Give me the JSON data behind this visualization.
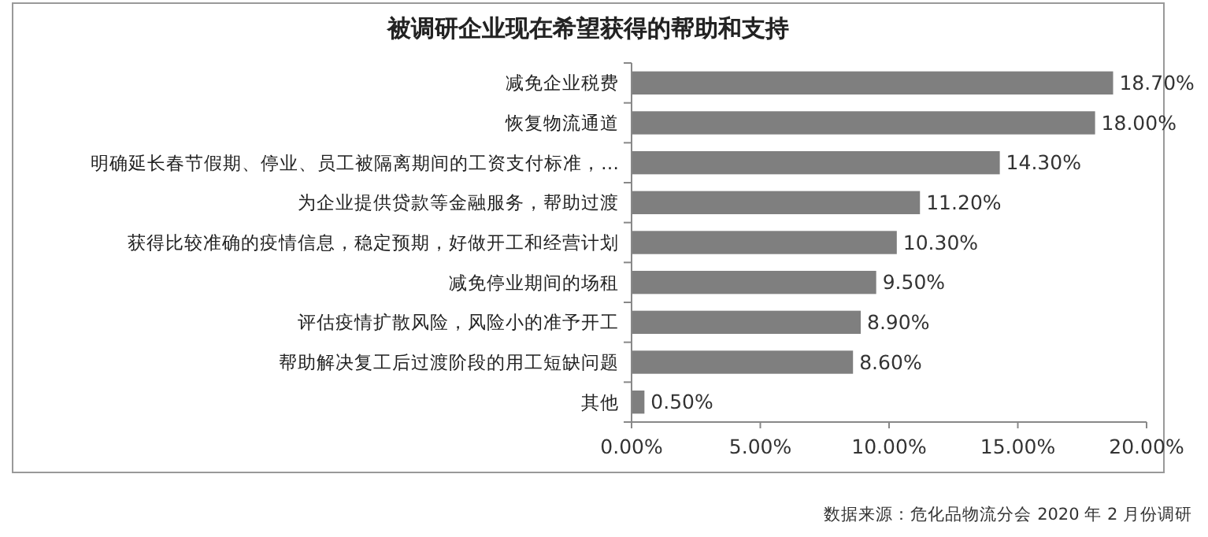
{
  "chart_data": {
    "type": "bar",
    "orientation": "horizontal",
    "title": "被调研企业现在希望获得的帮助和支持",
    "categories": [
      "减免企业税费",
      "恢复物流通道",
      "明确延长春节假期、停业、员工被隔离期间的工资支付标准，…",
      "为企业提供贷款等金融服务，帮助过渡",
      "获得比较准确的疫情信息，稳定预期，好做开工和经营计划",
      "减免停业期间的场租",
      "评估疫情扩散风险，风险小的准予开工",
      "帮助解决复工后过渡阶段的用工短缺问题",
      "其他"
    ],
    "values": [
      18.7,
      18.0,
      14.3,
      11.2,
      10.3,
      9.5,
      8.9,
      8.6,
      0.5
    ],
    "value_labels": [
      "18.70%",
      "18.00%",
      "14.30%",
      "11.20%",
      "10.30%",
      "9.50%",
      "8.90%",
      "8.60%",
      "0.50%"
    ],
    "color": "#7f7f7f",
    "xlim": [
      0,
      20
    ],
    "xticks": [
      {
        "value": 0,
        "label": "0.00%"
      },
      {
        "value": 5,
        "label": "5.00%"
      },
      {
        "value": 10,
        "label": "10.00%"
      },
      {
        "value": 15,
        "label": "15.00%"
      },
      {
        "value": 20,
        "label": "20.00%"
      }
    ],
    "grid": false,
    "annotations": [
      "数据来源：危化品物流分会 2020 年 2 月份调研"
    ]
  }
}
